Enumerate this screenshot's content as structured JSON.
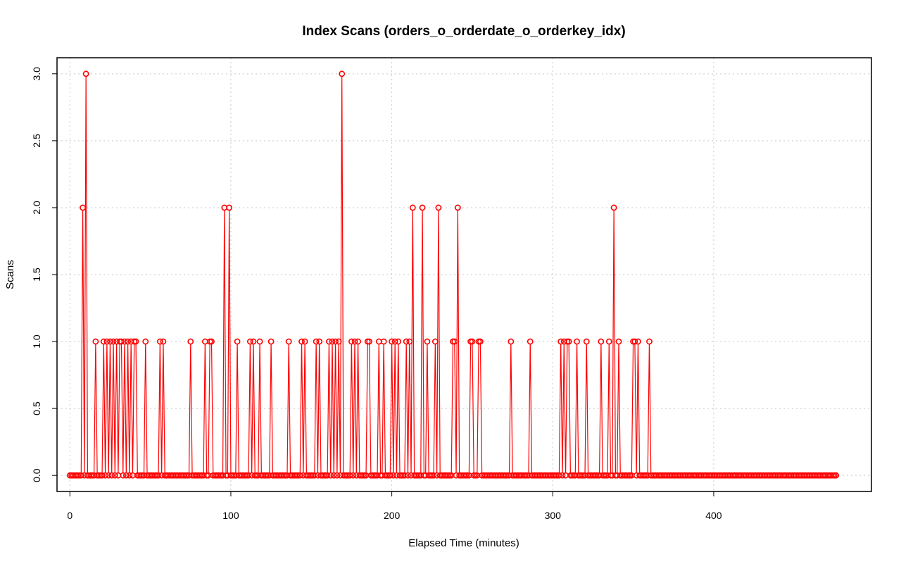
{
  "chart_data": {
    "type": "line",
    "title": "Index Scans (orders_o_orderdate_o_orderkey_idx)",
    "xlabel": "Elapsed Time (minutes)",
    "ylabel": "Scans",
    "xlim": [
      -8,
      498
    ],
    "ylim": [
      -0.12,
      3.12
    ],
    "x_ticks": [
      0,
      100,
      200,
      300,
      400
    ],
    "y_ticks": [
      0.0,
      0.5,
      1.0,
      1.5,
      2.0,
      2.5,
      3.0
    ],
    "y_tick_labels": [
      "0.0",
      "0.5",
      "1.0",
      "1.5",
      "2.0",
      "2.5",
      "3.0"
    ],
    "grid": true,
    "color": "#ff0000",
    "marker": "open-circle",
    "x_start": 0,
    "x_end": 476,
    "x_step": 1,
    "baseline": 0,
    "nonzero_points": [
      [
        8,
        2
      ],
      [
        10,
        3
      ],
      [
        16,
        1
      ],
      [
        21,
        1
      ],
      [
        23,
        1
      ],
      [
        25,
        1
      ],
      [
        27,
        1
      ],
      [
        29,
        1
      ],
      [
        31,
        1
      ],
      [
        32,
        1
      ],
      [
        34,
        1
      ],
      [
        36,
        1
      ],
      [
        38,
        1
      ],
      [
        40,
        1
      ],
      [
        41,
        1
      ],
      [
        47,
        1
      ],
      [
        56,
        1
      ],
      [
        58,
        1
      ],
      [
        75,
        1
      ],
      [
        84,
        1
      ],
      [
        87,
        1
      ],
      [
        88,
        1
      ],
      [
        96,
        2
      ],
      [
        99,
        2
      ],
      [
        104,
        1
      ],
      [
        112,
        1
      ],
      [
        114,
        1
      ],
      [
        118,
        1
      ],
      [
        125,
        1
      ],
      [
        136,
        1
      ],
      [
        144,
        1
      ],
      [
        146,
        1
      ],
      [
        153,
        1
      ],
      [
        155,
        1
      ],
      [
        161,
        1
      ],
      [
        163,
        1
      ],
      [
        165,
        1
      ],
      [
        167,
        1
      ],
      [
        169,
        3
      ],
      [
        175,
        1
      ],
      [
        177,
        1
      ],
      [
        179,
        1
      ],
      [
        185,
        1
      ],
      [
        186,
        1
      ],
      [
        192,
        1
      ],
      [
        195,
        1
      ],
      [
        200,
        1
      ],
      [
        202,
        1
      ],
      [
        204,
        1
      ],
      [
        209,
        1
      ],
      [
        211,
        1
      ],
      [
        213,
        2
      ],
      [
        219,
        2
      ],
      [
        222,
        1
      ],
      [
        227,
        1
      ],
      [
        229,
        2
      ],
      [
        238,
        1
      ],
      [
        239,
        1
      ],
      [
        241,
        2
      ],
      [
        249,
        1
      ],
      [
        250,
        1
      ],
      [
        254,
        1
      ],
      [
        255,
        1
      ],
      [
        274,
        1
      ],
      [
        286,
        1
      ],
      [
        305,
        1
      ],
      [
        307,
        1
      ],
      [
        309,
        1
      ],
      [
        310,
        1
      ],
      [
        315,
        1
      ],
      [
        321,
        1
      ],
      [
        330,
        1
      ],
      [
        335,
        1
      ],
      [
        338,
        2
      ],
      [
        341,
        1
      ],
      [
        350,
        1
      ],
      [
        351,
        1
      ],
      [
        353,
        1
      ],
      [
        360,
        1
      ]
    ]
  }
}
